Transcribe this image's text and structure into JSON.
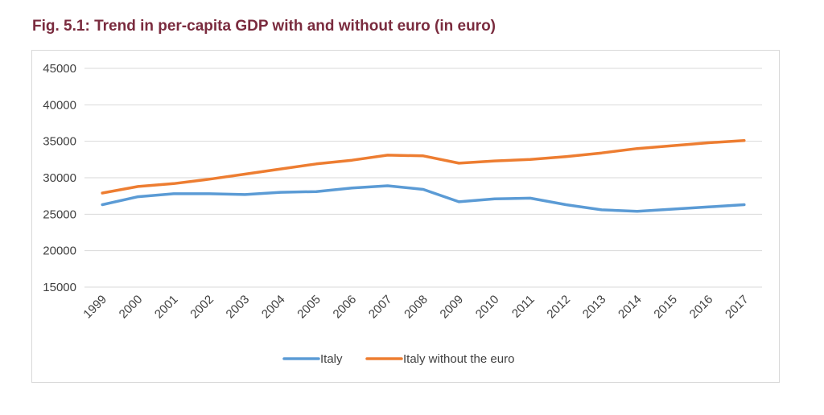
{
  "title": "Fig. 5.1: Trend in per-capita GDP with and without euro (in euro)",
  "chart_data": {
    "type": "line",
    "title": "",
    "xlabel": "",
    "ylabel": "",
    "x": [
      "1999",
      "2000",
      "2001",
      "2002",
      "2003",
      "2004",
      "2005",
      "2006",
      "2007",
      "2008",
      "2009",
      "2010",
      "2011",
      "2012",
      "2013",
      "2014",
      "2015",
      "2016",
      "2017"
    ],
    "ylim": [
      15000,
      45000
    ],
    "yticks": [
      15000,
      20000,
      25000,
      30000,
      35000,
      40000,
      45000
    ],
    "grid": "horizontal",
    "legend_position": "bottom",
    "series": [
      {
        "name": "Italy",
        "color": "#5b9bd5",
        "values": [
          26300,
          27400,
          27800,
          27800,
          27700,
          28000,
          28100,
          28600,
          28900,
          28400,
          26700,
          27100,
          27200,
          26300,
          25600,
          25400,
          25700,
          26000,
          26300
        ]
      },
      {
        "name": "Italy without the euro",
        "color": "#ed7d31",
        "values": [
          27900,
          28800,
          29200,
          29800,
          30500,
          31200,
          31900,
          32400,
          33100,
          33000,
          32000,
          32300,
          32500,
          32900,
          33400,
          34000,
          34400,
          34800,
          35100
        ]
      }
    ]
  }
}
